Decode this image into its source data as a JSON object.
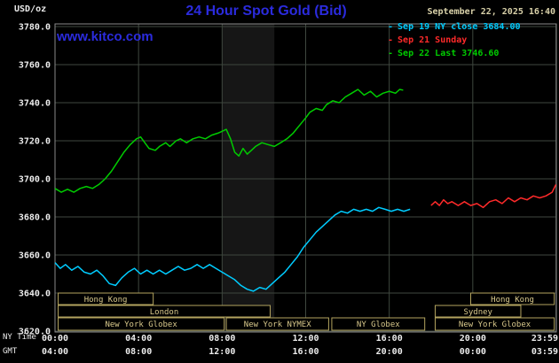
{
  "title": "24 Hour Spot Gold (Bid)",
  "datetime": "September 22, 2025 16:40",
  "watermark": "www.kitco.com",
  "labels": {
    "usd": "USD/oz",
    "ny_time": "NY Time",
    "gmt": "GMT"
  },
  "colors": {
    "title_blue": "#2b2bdd",
    "tan": "#d8d0a8",
    "session_tan": "#b3a45f",
    "cyan": "#00ccff",
    "red": "#ff2a2a",
    "green": "#00cc00"
  },
  "legend": [
    {
      "marker": "-",
      "label": "Sep 19 NY close 3684.00",
      "color": "#00ccff"
    },
    {
      "marker": "-",
      "label": "Sep 21 Sunday",
      "color": "#ff2a2a"
    },
    {
      "marker": "-",
      "label": "Sep 22 Last 3746.60",
      "color": "#00cc00"
    }
  ],
  "sessions": [
    {
      "row": 1,
      "h0": 0.15,
      "h1": 4.7,
      "label": "Hong Kong"
    },
    {
      "row": 1,
      "h0": 19.9,
      "h1": 23.9,
      "label": "Hong Kong"
    },
    {
      "row": 2,
      "h0": 0.15,
      "h1": 10.3,
      "label": "London"
    },
    {
      "row": 2,
      "h0": 18.2,
      "h1": 22.3,
      "label": "Sydney"
    },
    {
      "row": 3,
      "h0": 0.15,
      "h1": 8.1,
      "label": "New York Globex"
    },
    {
      "row": 3,
      "h0": 8.2,
      "h1": 13.1,
      "label": "New York NYMEX"
    },
    {
      "row": 3,
      "h0": 13.25,
      "h1": 17.7,
      "label": "NY Globex"
    },
    {
      "row": 3,
      "h0": 18.2,
      "h1": 23.9,
      "label": "New York Globex"
    }
  ],
  "chart_data": {
    "type": "line",
    "title": "24 Hour Spot Gold (Bid)",
    "ylabel": "USD/oz",
    "x_unit": "hours, NY time",
    "xlim": [
      0,
      24
    ],
    "ylim": [
      3620,
      3780
    ],
    "grid": true,
    "legend_position": "top-right",
    "yticks": [
      {
        "v": 3780,
        "label": "3780.0"
      },
      {
        "v": 3760,
        "label": "3760.0"
      },
      {
        "v": 3740,
        "label": "3740.0"
      },
      {
        "v": 3720,
        "label": "3720.0"
      },
      {
        "v": 3700,
        "label": "3700.0"
      },
      {
        "v": 3680,
        "label": "3680.0"
      },
      {
        "v": 3660,
        "label": "3660.0"
      },
      {
        "v": 3640,
        "label": "3640.0"
      },
      {
        "v": 3620,
        "label": "3620.0"
      }
    ],
    "xticks": [
      {
        "h": 0,
        "ny": "00:00",
        "gmt": "04:00"
      },
      {
        "h": 4,
        "ny": "04:00",
        "gmt": "08:00"
      },
      {
        "h": 8,
        "ny": "08:00",
        "gmt": "12:00"
      },
      {
        "h": 12,
        "ny": "12:00",
        "gmt": "16:00"
      },
      {
        "h": 16,
        "ny": "16:00",
        "gmt": "20:00"
      },
      {
        "h": 20,
        "ny": "20:00",
        "gmt": "00:00"
      },
      {
        "h": 23.983,
        "ny": "23:59",
        "gmt": "03:59"
      }
    ],
    "bands": [
      {
        "h0": 8.0,
        "h1": 10.5,
        "color": "#161616"
      }
    ],
    "series": [
      {
        "name": "Sep 19 NY close",
        "color": "#00ccff",
        "close": 3684.0,
        "points": [
          [
            0,
            3656
          ],
          [
            0.25,
            3653
          ],
          [
            0.5,
            3655
          ],
          [
            0.8,
            3652
          ],
          [
            1.1,
            3654
          ],
          [
            1.4,
            3651
          ],
          [
            1.7,
            3650
          ],
          [
            2,
            3652
          ],
          [
            2.3,
            3649
          ],
          [
            2.6,
            3645
          ],
          [
            2.9,
            3644
          ],
          [
            3.2,
            3648
          ],
          [
            3.5,
            3651
          ],
          [
            3.8,
            3653
          ],
          [
            4.1,
            3650
          ],
          [
            4.4,
            3652
          ],
          [
            4.7,
            3650
          ],
          [
            5,
            3652
          ],
          [
            5.3,
            3650
          ],
          [
            5.6,
            3652
          ],
          [
            5.9,
            3654
          ],
          [
            6.2,
            3652
          ],
          [
            6.5,
            3653
          ],
          [
            6.8,
            3655
          ],
          [
            7.1,
            3653
          ],
          [
            7.4,
            3655
          ],
          [
            7.7,
            3653
          ],
          [
            8,
            3651
          ],
          [
            8.3,
            3649
          ],
          [
            8.6,
            3647
          ],
          [
            8.9,
            3644
          ],
          [
            9.2,
            3642
          ],
          [
            9.5,
            3641
          ],
          [
            9.8,
            3643
          ],
          [
            10.1,
            3642
          ],
          [
            10.4,
            3645
          ],
          [
            10.7,
            3648
          ],
          [
            11,
            3651
          ],
          [
            11.3,
            3655
          ],
          [
            11.6,
            3659
          ],
          [
            11.9,
            3664
          ],
          [
            12.2,
            3668
          ],
          [
            12.5,
            3672
          ],
          [
            12.8,
            3675
          ],
          [
            13.1,
            3678
          ],
          [
            13.4,
            3681
          ],
          [
            13.7,
            3683
          ],
          [
            14,
            3682
          ],
          [
            14.3,
            3684
          ],
          [
            14.6,
            3683
          ],
          [
            14.9,
            3684
          ],
          [
            15.2,
            3683
          ],
          [
            15.5,
            3685
          ],
          [
            15.8,
            3684
          ],
          [
            16.1,
            3683
          ],
          [
            16.4,
            3684
          ],
          [
            16.7,
            3683
          ],
          [
            17,
            3684
          ]
        ]
      },
      {
        "name": "Sep 21 Sunday",
        "color": "#ff2a2a",
        "points": [
          [
            18,
            3686
          ],
          [
            18.2,
            3688
          ],
          [
            18.4,
            3686
          ],
          [
            18.6,
            3689
          ],
          [
            18.8,
            3687
          ],
          [
            19,
            3688
          ],
          [
            19.3,
            3686
          ],
          [
            19.6,
            3688
          ],
          [
            19.9,
            3686
          ],
          [
            20.2,
            3687
          ],
          [
            20.5,
            3685
          ],
          [
            20.8,
            3688
          ],
          [
            21.1,
            3689
          ],
          [
            21.4,
            3687
          ],
          [
            21.7,
            3690
          ],
          [
            22,
            3688
          ],
          [
            22.3,
            3690
          ],
          [
            22.6,
            3689
          ],
          [
            22.9,
            3691
          ],
          [
            23.2,
            3690
          ],
          [
            23.5,
            3691
          ],
          [
            23.8,
            3693
          ],
          [
            23.98,
            3697
          ]
        ]
      },
      {
        "name": "Sep 22 Last",
        "color": "#00cc00",
        "last": 3746.6,
        "points": [
          [
            0,
            3695
          ],
          [
            0.3,
            3693
          ],
          [
            0.6,
            3694.5
          ],
          [
            0.9,
            3693
          ],
          [
            1.2,
            3695
          ],
          [
            1.5,
            3696
          ],
          [
            1.8,
            3695
          ],
          [
            2.1,
            3697
          ],
          [
            2.4,
            3700
          ],
          [
            2.7,
            3704
          ],
          [
            3,
            3709
          ],
          [
            3.3,
            3714
          ],
          [
            3.6,
            3718
          ],
          [
            3.9,
            3721
          ],
          [
            4.1,
            3722
          ],
          [
            4.3,
            3719
          ],
          [
            4.5,
            3716
          ],
          [
            4.8,
            3715
          ],
          [
            5,
            3717
          ],
          [
            5.3,
            3719
          ],
          [
            5.5,
            3717
          ],
          [
            5.8,
            3720
          ],
          [
            6,
            3721
          ],
          [
            6.3,
            3719
          ],
          [
            6.6,
            3721
          ],
          [
            6.9,
            3722
          ],
          [
            7.2,
            3721
          ],
          [
            7.5,
            3723
          ],
          [
            7.8,
            3724
          ],
          [
            8,
            3725
          ],
          [
            8.2,
            3726
          ],
          [
            8.4,
            3721
          ],
          [
            8.6,
            3714
          ],
          [
            8.8,
            3712
          ],
          [
            9,
            3716
          ],
          [
            9.2,
            3713
          ],
          [
            9.4,
            3715
          ],
          [
            9.6,
            3717
          ],
          [
            9.9,
            3719
          ],
          [
            10.2,
            3718
          ],
          [
            10.5,
            3717
          ],
          [
            10.8,
            3719
          ],
          [
            11.1,
            3721
          ],
          [
            11.4,
            3724
          ],
          [
            11.7,
            3728
          ],
          [
            12,
            3732
          ],
          [
            12.2,
            3735
          ],
          [
            12.5,
            3737
          ],
          [
            12.8,
            3736
          ],
          [
            13,
            3739
          ],
          [
            13.3,
            3741
          ],
          [
            13.6,
            3740
          ],
          [
            13.9,
            3743
          ],
          [
            14.2,
            3745
          ],
          [
            14.5,
            3747
          ],
          [
            14.8,
            3744
          ],
          [
            15.1,
            3746
          ],
          [
            15.4,
            3743
          ],
          [
            15.7,
            3745
          ],
          [
            16,
            3746
          ],
          [
            16.3,
            3745
          ],
          [
            16.5,
            3747
          ],
          [
            16.67,
            3746.6
          ]
        ]
      }
    ]
  }
}
